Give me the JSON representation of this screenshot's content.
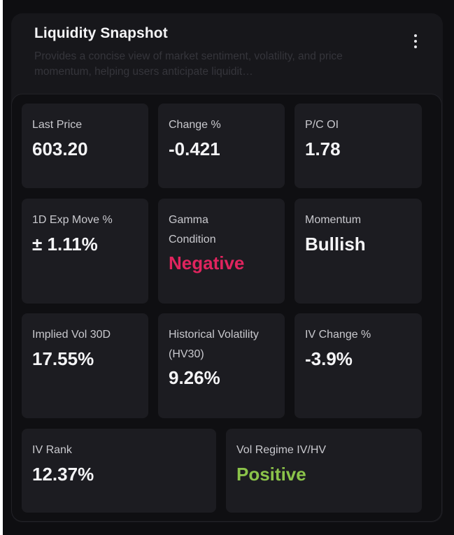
{
  "header": {
    "title": "Liquidity Snapshot",
    "description": "Provides a concise view of market sentiment, volatility, and price momentum, helping users anticipate liquidit…",
    "menu_icon": "more-vertical-icon"
  },
  "metrics": {
    "last_price": {
      "label": "Last Price",
      "value": "603.20"
    },
    "change_pct": {
      "label": "Change %",
      "value": "-0.421"
    },
    "pc_oi": {
      "label": "P/C OI",
      "value": "1.78"
    },
    "exp_move": {
      "label": "1D Exp Move %",
      "value": "± 1.11%"
    },
    "gamma": {
      "label": "Gamma Condition",
      "value": "Negative"
    },
    "momentum": {
      "label": "Momentum",
      "value": "Bullish"
    },
    "implied_vol": {
      "label": "Implied Vol 30D",
      "value": "17.55%"
    },
    "hist_vol": {
      "label": "Historical Volatility (HV30)",
      "value": "9.26%"
    },
    "iv_change": {
      "label": "IV Change %",
      "value": "-3.9%"
    },
    "iv_rank": {
      "label": "IV Rank",
      "value": "12.37%"
    },
    "vol_regime": {
      "label": "Vol Regime IV/HV",
      "value": "Positive"
    }
  },
  "colors": {
    "background": "#0e0e11",
    "card": "#17171b",
    "tile": "#1c1c21",
    "text_primary": "#f4f4f6",
    "text_muted": "#c9c9ce",
    "negative": "#e0245e",
    "positive": "#8bc34a"
  }
}
